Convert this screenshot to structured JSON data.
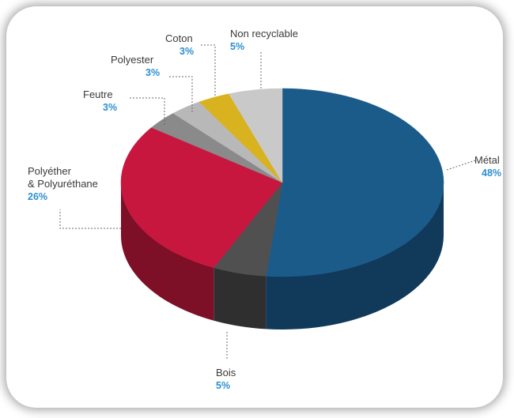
{
  "chart_data": {
    "type": "pie",
    "style": "3d",
    "title": "",
    "slices": [
      {
        "key": "metal",
        "name": "Métal",
        "name2": "",
        "pct_label": "48%",
        "value": 48,
        "color": "#1b5b8a",
        "dark": "#10395a"
      },
      {
        "key": "bois",
        "name": "Bois",
        "name2": "",
        "pct_label": "5%",
        "value": 5,
        "color": "#505050",
        "dark": "#2f2f2f"
      },
      {
        "key": "polyether",
        "name": "Polyéther",
        "name2": "& Polyuréthane",
        "pct_label": "26%",
        "value": 26,
        "color": "#c8173f",
        "dark": "#7d0f27"
      },
      {
        "key": "feutre",
        "name": "Feutre",
        "name2": "",
        "pct_label": "3%",
        "value": 3,
        "color": "#8a8a8a",
        "dark": "#6a6a6a"
      },
      {
        "key": "polyester",
        "name": "Polyester",
        "name2": "",
        "pct_label": "3%",
        "value": 3,
        "color": "#b8b8b8",
        "dark": "#8e8e8e"
      },
      {
        "key": "coton",
        "name": "Coton",
        "name2": "",
        "pct_label": "3%",
        "value": 3,
        "color": "#d8b21f",
        "dark": "#a88a14"
      },
      {
        "key": "non_recyclable",
        "name": "Non recyclable",
        "name2": "",
        "pct_label": "5%",
        "value": 5,
        "color": "#c9c9c9",
        "dark": "#9e9e9e"
      }
    ],
    "pct_color": "#2d8fd0"
  }
}
